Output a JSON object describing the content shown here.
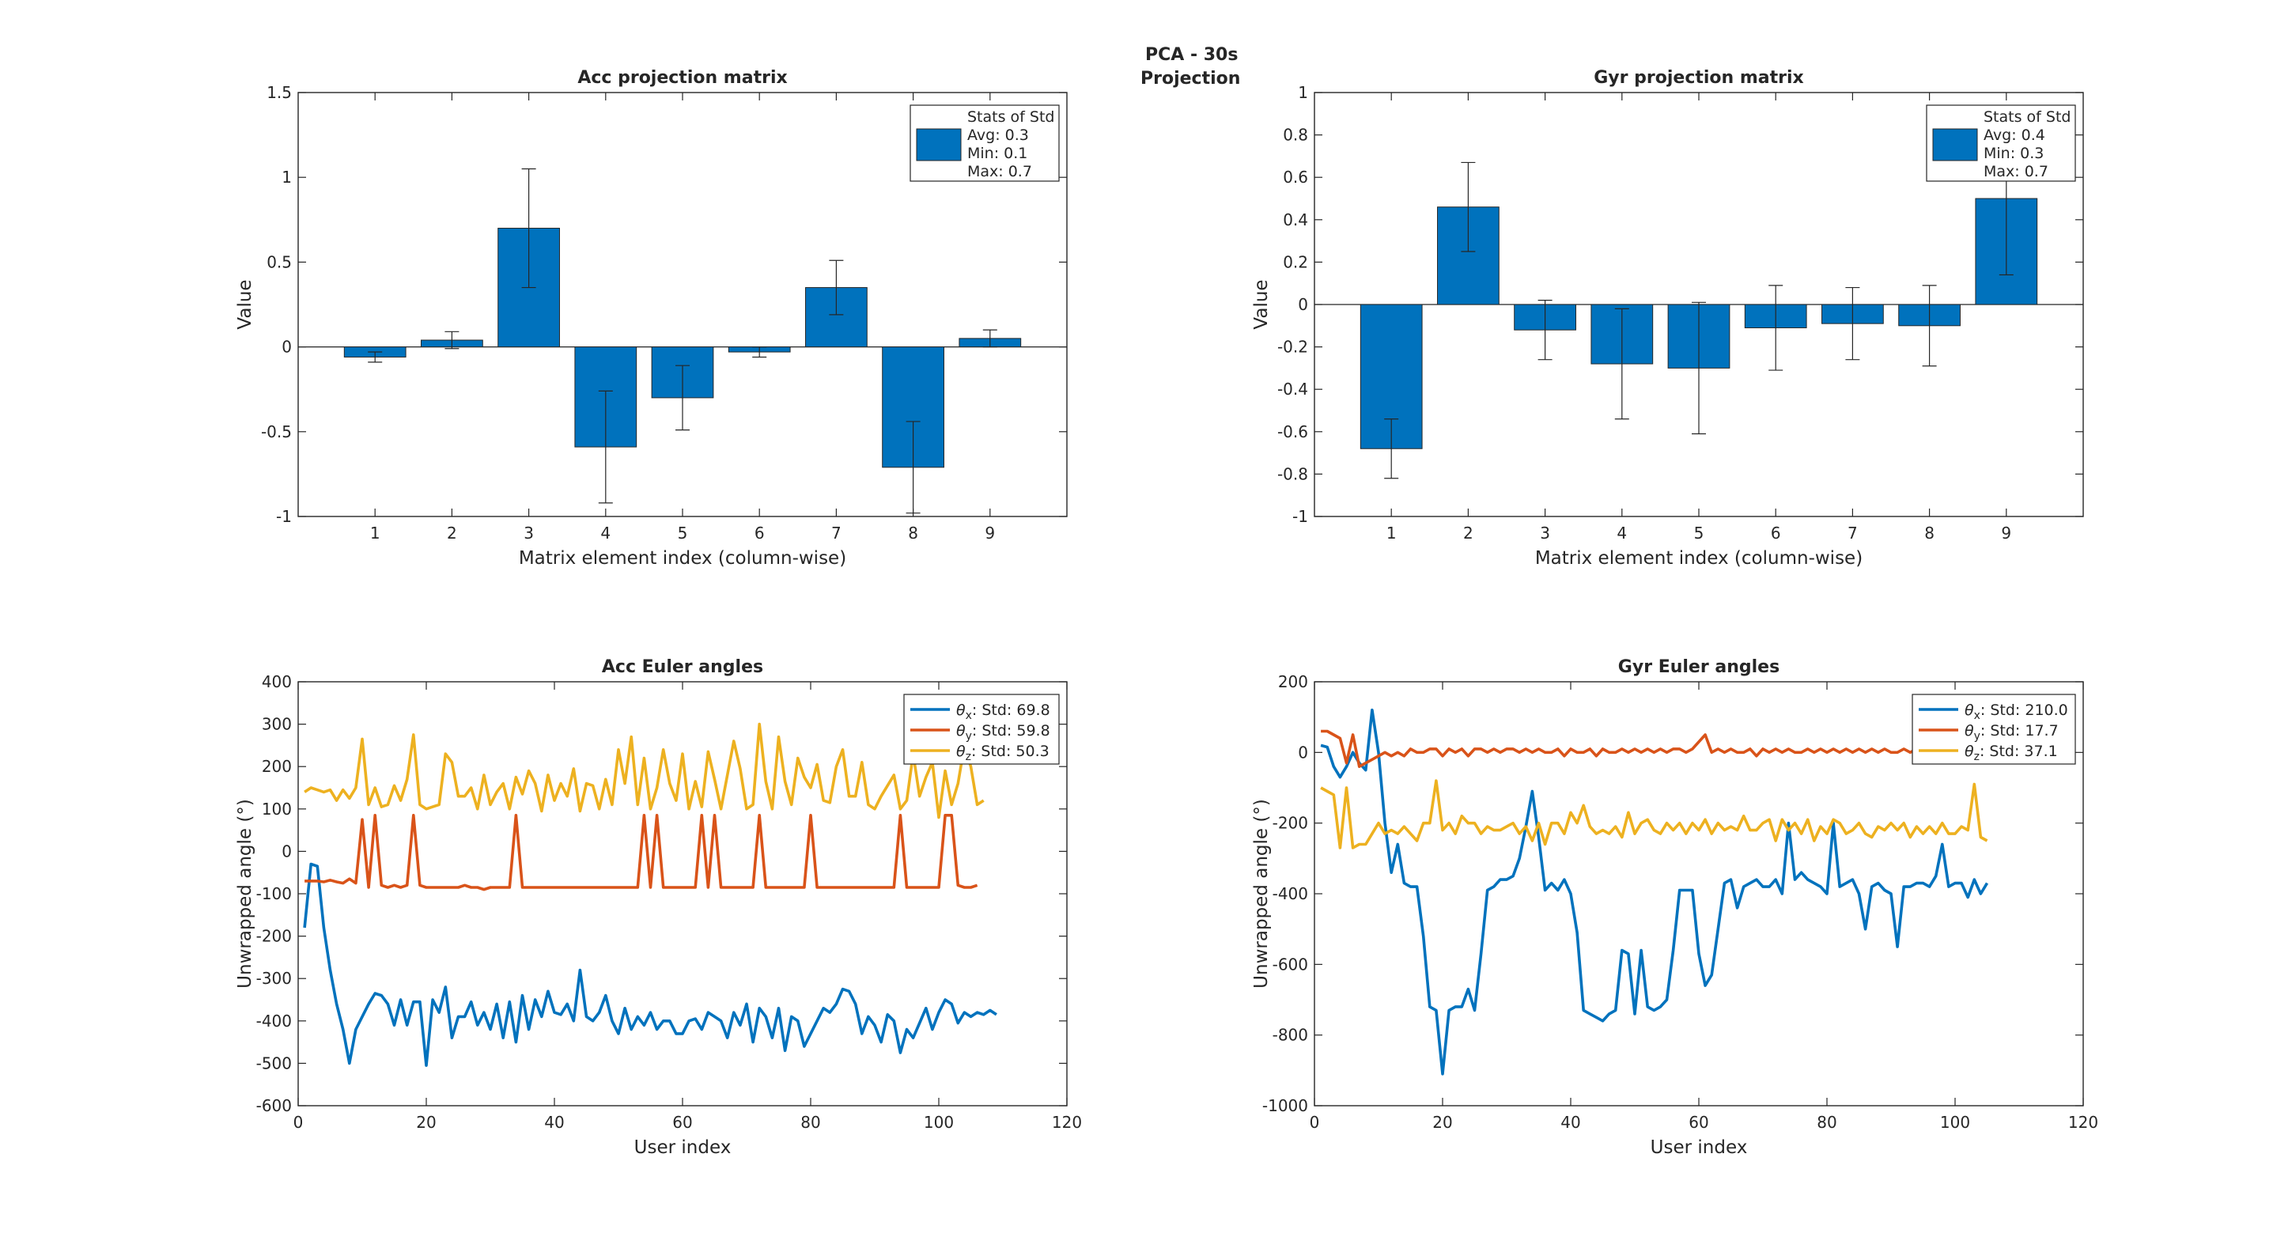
{
  "figure": {
    "title_line1": "PCA - 30s",
    "title_line2": "Projection"
  },
  "colors": {
    "blue": "#0072BD",
    "orange": "#D95319",
    "yellow": "#EDB120",
    "axis": "#262626"
  },
  "chart_data": [
    {
      "type": "bar",
      "title": "Acc projection matrix",
      "xlabel": "Matrix element index (column-wise)",
      "ylabel": "Value",
      "categories": [
        "1",
        "2",
        "3",
        "4",
        "5",
        "6",
        "7",
        "8",
        "9"
      ],
      "values": [
        -0.06,
        0.04,
        0.7,
        -0.59,
        -0.3,
        -0.03,
        0.35,
        -0.71,
        0.05
      ],
      "errors": [
        0.03,
        0.05,
        0.35,
        0.33,
        0.19,
        0.03,
        0.16,
        0.27,
        0.05
      ],
      "xlim": [
        0,
        10
      ],
      "ylim": [
        -1,
        1.5
      ],
      "yticks": [
        "-1",
        "-0.5",
        "0",
        "0.5",
        "1",
        "1.5"
      ],
      "legend": {
        "placement": "top-right",
        "header": "Stats of Std",
        "avg": "Avg: 0.3",
        "min": "Min: 0.1",
        "max": "Max: 0.7"
      }
    },
    {
      "type": "bar",
      "title": "Gyr projection matrix",
      "xlabel": "Matrix element index (column-wise)",
      "ylabel": "Value",
      "categories": [
        "1",
        "2",
        "3",
        "4",
        "5",
        "6",
        "7",
        "8",
        "9"
      ],
      "values": [
        -0.68,
        0.46,
        -0.12,
        -0.28,
        -0.3,
        -0.11,
        -0.09,
        -0.1,
        0.5
      ],
      "errors": [
        0.14,
        0.21,
        0.14,
        0.26,
        0.31,
        0.2,
        0.17,
        0.19,
        0.36
      ],
      "xlim": [
        0,
        10
      ],
      "ylim": [
        -1,
        1
      ],
      "yticks": [
        "-1",
        "-0.8",
        "-0.6",
        "-0.4",
        "-0.2",
        "0",
        "0.2",
        "0.4",
        "0.6",
        "0.8",
        "1"
      ],
      "legend": {
        "placement": "top-right",
        "header": "Stats of Std",
        "avg": "Avg: 0.4",
        "min": "Min: 0.3",
        "max": "Max: 0.7"
      }
    },
    {
      "type": "line",
      "title": "Acc Euler angles",
      "xlabel": "User index",
      "ylabel": "Unwrapped angle (°)",
      "xlim": [
        0,
        120
      ],
      "ylim": [
        -600,
        400
      ],
      "xticks": [
        "0",
        "20",
        "40",
        "60",
        "80",
        "100",
        "120"
      ],
      "yticks": [
        "-600",
        "-500",
        "-400",
        "-300",
        "-200",
        "-100",
        "0",
        "100",
        "200",
        "300",
        "400"
      ],
      "legend": {
        "placement": "top-right"
      },
      "series": [
        {
          "name": "θx: Std: 69.8",
          "sym": "θ",
          "sub": "x",
          "rest": ": Std: 69.8",
          "color": "#0072BD",
          "values": [
            -180,
            -30,
            -35,
            -180,
            -280,
            -360,
            -420,
            -500,
            -420,
            -390,
            -360,
            -335,
            -340,
            -360,
            -410,
            -350,
            -410,
            -355,
            -355,
            -505,
            -350,
            -380,
            -320,
            -440,
            -390,
            -390,
            -355,
            -410,
            -380,
            -420,
            -360,
            -440,
            -355,
            -450,
            -340,
            -420,
            -350,
            -390,
            -330,
            -380,
            -385,
            -360,
            -400,
            -280,
            -390,
            -400,
            -380,
            -340,
            -400,
            -430,
            -370,
            -420,
            -390,
            -410,
            -380,
            -420,
            -400,
            -400,
            -430,
            -430,
            -400,
            -395,
            -420,
            -380,
            -390,
            -400,
            -440,
            -380,
            -410,
            -360,
            -450,
            -370,
            -390,
            -440,
            -370,
            -470,
            -390,
            -400,
            -460,
            -430,
            -400,
            -370,
            -380,
            -360,
            -325,
            -330,
            -360,
            -430,
            -390,
            -410,
            -450,
            -385,
            -400,
            -475,
            -420,
            -440,
            -405,
            -370,
            -420,
            -380,
            -350,
            -360,
            -405,
            -380,
            -390,
            -380,
            -385,
            -375,
            -385
          ]
        },
        {
          "name": "θy: Std: 59.8",
          "sym": "θ",
          "sub": "y",
          "rest": ": Std: 59.8",
          "color": "#D95319",
          "values": [
            -70,
            -70,
            -70,
            -72,
            -68,
            -72,
            -75,
            -65,
            -75,
            75,
            -85,
            85,
            -80,
            -85,
            -80,
            -85,
            -80,
            85,
            -80,
            -85,
            -85,
            -85,
            -85,
            -85,
            -85,
            -80,
            -85,
            -85,
            -90,
            -85,
            -85,
            -85,
            -85,
            85,
            -85,
            -85,
            -85,
            -85,
            -85,
            -85,
            -85,
            -85,
            -85,
            -85,
            -85,
            -85,
            -85,
            -85,
            -85,
            -85,
            -85,
            -85,
            -85,
            85,
            -85,
            85,
            -85,
            -85,
            -85,
            -85,
            -85,
            -85,
            85,
            -85,
            85,
            -85,
            -85,
            -85,
            -85,
            -85,
            -85,
            85,
            -85,
            -85,
            -85,
            -85,
            -85,
            -85,
            -85,
            85,
            -85,
            -85,
            -85,
            -85,
            -85,
            -85,
            -85,
            -85,
            -85,
            -85,
            -85,
            -85,
            -85,
            85,
            -85,
            -85,
            -85,
            -85,
            -85,
            -85,
            85,
            85,
            -80,
            -85,
            -85,
            -80
          ]
        },
        {
          "name": "θz: Std: 50.3",
          "sym": "θ",
          "sub": "z",
          "rest": ": Std: 50.3",
          "color": "#EDB120",
          "values": [
            140,
            150,
            145,
            140,
            145,
            120,
            145,
            125,
            150,
            265,
            110,
            150,
            105,
            110,
            155,
            120,
            170,
            275,
            110,
            100,
            105,
            110,
            230,
            210,
            130,
            130,
            150,
            100,
            180,
            110,
            140,
            160,
            100,
            175,
            135,
            190,
            160,
            95,
            180,
            120,
            160,
            130,
            195,
            95,
            160,
            155,
            100,
            170,
            110,
            240,
            160,
            270,
            110,
            220,
            100,
            150,
            240,
            160,
            120,
            230,
            100,
            165,
            105,
            235,
            170,
            100,
            180,
            260,
            195,
            100,
            110,
            300,
            165,
            100,
            270,
            165,
            110,
            220,
            175,
            150,
            205,
            120,
            115,
            200,
            240,
            130,
            130,
            210,
            110,
            100,
            130,
            155,
            180,
            100,
            120,
            230,
            130,
            175,
            210,
            80,
            190,
            110,
            160,
            250,
            200,
            110,
            120
          ]
        }
      ]
    },
    {
      "type": "line",
      "title": "Gyr Euler angles",
      "xlabel": "User index",
      "ylabel": "Unwrapped angle (°)",
      "xlim": [
        0,
        120
      ],
      "ylim": [
        -1000,
        200
      ],
      "xticks": [
        "0",
        "20",
        "40",
        "60",
        "80",
        "100",
        "120"
      ],
      "yticks": [
        "-1000",
        "-800",
        "-600",
        "-400",
        "-200",
        "0",
        "200"
      ],
      "legend": {
        "placement": "top-right"
      },
      "series": [
        {
          "name": "θx: Std: 210.0",
          "sym": "θ",
          "sub": "x",
          "rest": ": Std: 210.0",
          "color": "#0072BD",
          "values": [
            20,
            15,
            -40,
            -70,
            -40,
            0,
            -30,
            -50,
            120,
            0,
            -200,
            -340,
            -260,
            -370,
            -380,
            -380,
            -520,
            -720,
            -730,
            -910,
            -730,
            -720,
            -720,
            -670,
            -730,
            -570,
            -390,
            -380,
            -360,
            -360,
            -350,
            -300,
            -210,
            -110,
            -240,
            -390,
            -370,
            -390,
            -360,
            -400,
            -510,
            -730,
            -740,
            -750,
            -760,
            -740,
            -730,
            -560,
            -570,
            -740,
            -560,
            -720,
            -730,
            -720,
            -700,
            -560,
            -390,
            -390,
            -390,
            -570,
            -660,
            -630,
            -500,
            -370,
            -360,
            -440,
            -380,
            -370,
            -360,
            -380,
            -380,
            -360,
            -400,
            -200,
            -360,
            -340,
            -360,
            -370,
            -380,
            -400,
            -200,
            -380,
            -370,
            -360,
            -400,
            -500,
            -380,
            -370,
            -390,
            -400,
            -550,
            -380,
            -380,
            -370,
            -370,
            -380,
            -350,
            -260,
            -380,
            -370,
            -370,
            -410,
            -360,
            -400,
            -370
          ]
        },
        {
          "name": "θy: Std: 17.7",
          "sym": "θ",
          "sub": "y",
          "rest": ": Std: 17.7",
          "color": "#D95319",
          "values": [
            60,
            60,
            50,
            40,
            -30,
            50,
            -40,
            -30,
            -20,
            -10,
            0,
            -10,
            0,
            -10,
            10,
            0,
            0,
            10,
            10,
            -10,
            10,
            0,
            10,
            -10,
            10,
            10,
            0,
            10,
            0,
            10,
            10,
            0,
            10,
            0,
            10,
            0,
            0,
            10,
            -10,
            10,
            0,
            0,
            10,
            -10,
            10,
            0,
            0,
            10,
            0,
            10,
            0,
            10,
            0,
            10,
            0,
            10,
            10,
            0,
            10,
            30,
            50,
            0,
            10,
            0,
            10,
            0,
            0,
            10,
            -10,
            10,
            0,
            10,
            0,
            10,
            0,
            0,
            10,
            0,
            10,
            0,
            10,
            0,
            10,
            0,
            10,
            0,
            10,
            0,
            10,
            0,
            0,
            10,
            0,
            10,
            0,
            0,
            10,
            0,
            10,
            0,
            0,
            10,
            10,
            0,
            0
          ]
        },
        {
          "name": "θz: Std: 37.1",
          "sym": "θ",
          "sub": "z",
          "rest": ": Std: 37.1",
          "color": "#EDB120",
          "values": [
            -100,
            -110,
            -120,
            -270,
            -100,
            -270,
            -260,
            -260,
            -230,
            -200,
            -230,
            -220,
            -230,
            -210,
            -230,
            -250,
            -200,
            -200,
            -80,
            -220,
            -200,
            -230,
            -180,
            -200,
            -200,
            -230,
            -210,
            -220,
            -220,
            -210,
            -200,
            -230,
            -210,
            -250,
            -200,
            -260,
            -200,
            -200,
            -230,
            -170,
            -200,
            -150,
            -210,
            -230,
            -220,
            -230,
            -210,
            -240,
            -170,
            -230,
            -200,
            -190,
            -220,
            -230,
            -200,
            -220,
            -200,
            -230,
            -200,
            -220,
            -190,
            -230,
            -200,
            -220,
            -210,
            -220,
            -180,
            -220,
            -220,
            -200,
            -190,
            -250,
            -190,
            -220,
            -200,
            -230,
            -190,
            -250,
            -210,
            -230,
            -190,
            -200,
            -230,
            -220,
            -200,
            -230,
            -240,
            -210,
            -220,
            -200,
            -220,
            -200,
            -240,
            -210,
            -230,
            -210,
            -230,
            -200,
            -230,
            -230,
            -210,
            -220,
            -90,
            -240,
            -250
          ]
        }
      ]
    }
  ]
}
